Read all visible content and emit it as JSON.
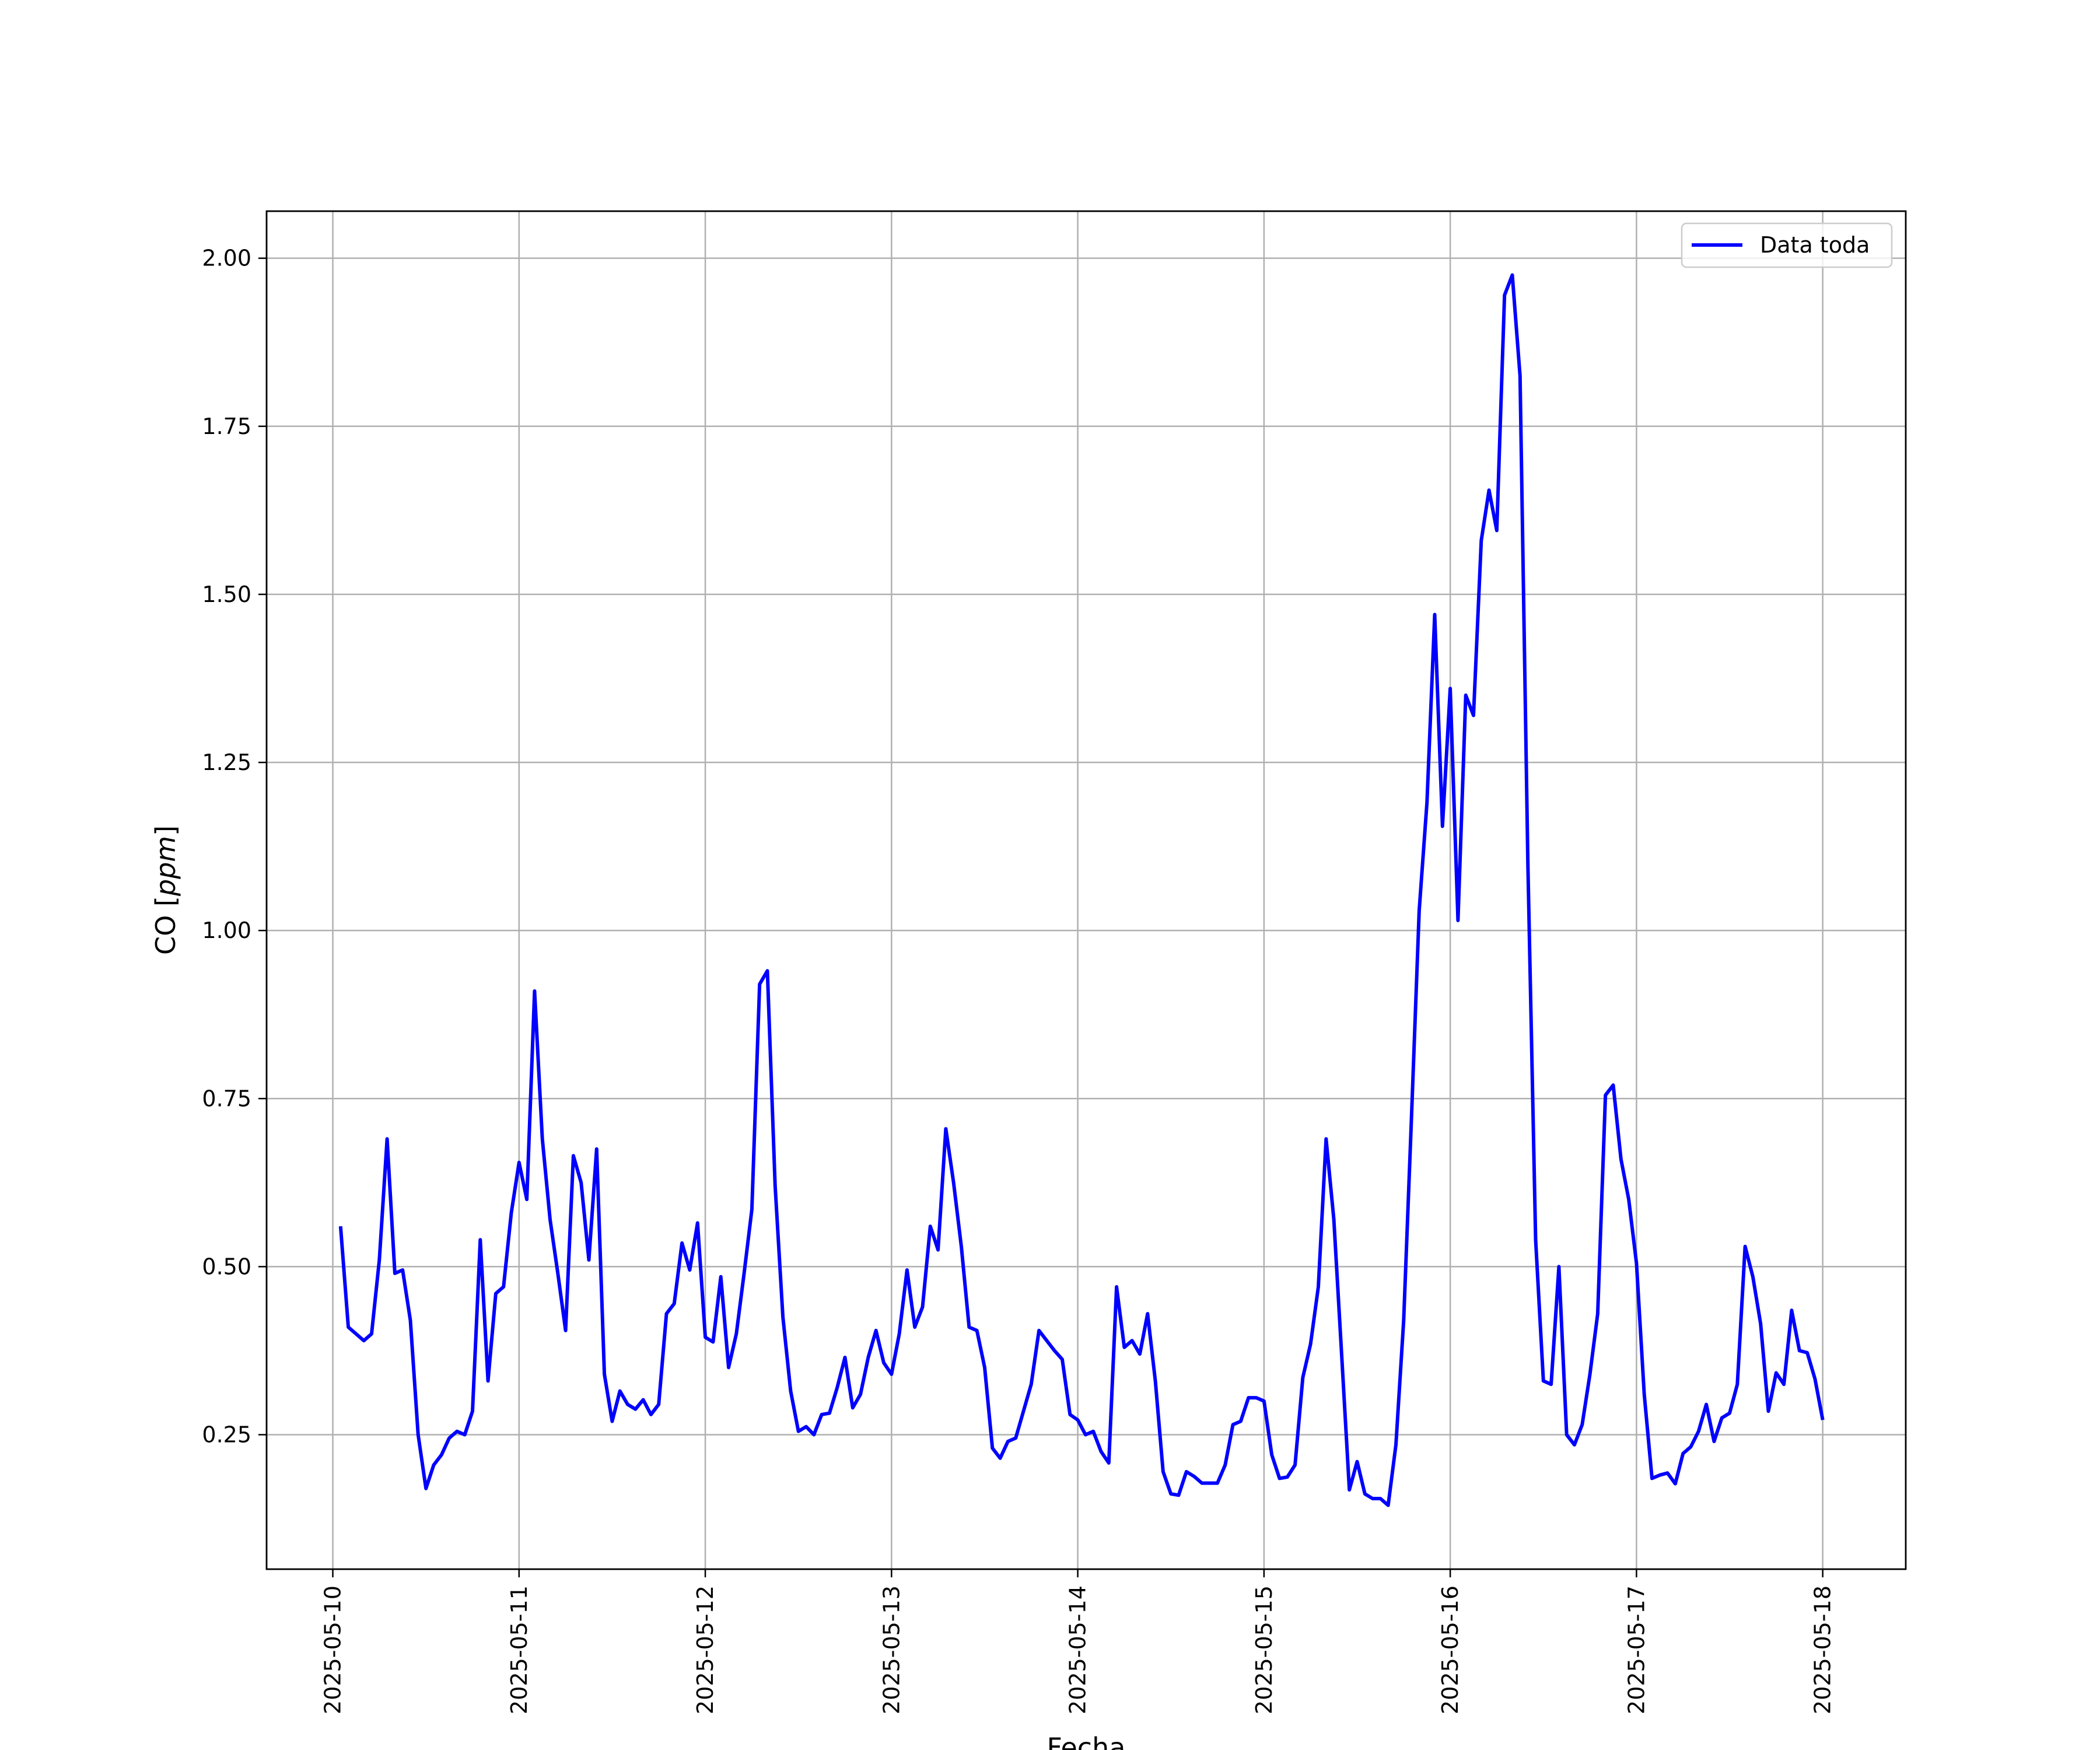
{
  "chart_data": {
    "type": "line",
    "xlabel": "Fecha",
    "ylabel_prefix": "CO [",
    "ylabel_unit": "ppm",
    "ylabel_suffix": "]",
    "x_ticks": [
      "2025-05-10",
      "2025-05-11",
      "2025-05-12",
      "2025-05-13",
      "2025-05-14",
      "2025-05-15",
      "2025-05-16",
      "2025-05-17",
      "2025-05-18"
    ],
    "y_ticks": [
      "0.25",
      "0.50",
      "0.75",
      "1.00",
      "1.25",
      "1.50",
      "1.75",
      "2.00"
    ],
    "xlim": [
      "2025-05-09T15:28",
      "2025-05-18T10:42"
    ],
    "ylim": [
      0.05,
      2.07
    ],
    "grid": true,
    "legend_position": "upper right",
    "series": [
      {
        "name": "Data toda",
        "color": "#0000ff",
        "x": [
          "2025-05-10T01:00",
          "2025-05-10T02:00",
          "2025-05-10T03:00",
          "2025-05-10T04:00",
          "2025-05-10T05:00",
          "2025-05-10T06:00",
          "2025-05-10T07:00",
          "2025-05-10T08:00",
          "2025-05-10T09:00",
          "2025-05-10T10:00",
          "2025-05-10T11:00",
          "2025-05-10T12:00",
          "2025-05-10T13:00",
          "2025-05-10T14:00",
          "2025-05-10T15:00",
          "2025-05-10T16:00",
          "2025-05-10T17:00",
          "2025-05-10T18:00",
          "2025-05-10T19:00",
          "2025-05-10T20:00",
          "2025-05-10T21:00",
          "2025-05-10T22:00",
          "2025-05-10T23:00",
          "2025-05-11T00:00",
          "2025-05-11T01:00",
          "2025-05-11T02:00",
          "2025-05-11T03:00",
          "2025-05-11T04:00",
          "2025-05-11T05:00",
          "2025-05-11T06:00",
          "2025-05-11T07:00",
          "2025-05-11T08:00",
          "2025-05-11T09:00",
          "2025-05-11T10:00",
          "2025-05-11T11:00",
          "2025-05-11T12:00",
          "2025-05-11T13:00",
          "2025-05-11T14:00",
          "2025-05-11T15:00",
          "2025-05-11T16:00",
          "2025-05-11T17:00",
          "2025-05-11T18:00",
          "2025-05-11T19:00",
          "2025-05-11T20:00",
          "2025-05-11T21:00",
          "2025-05-11T22:00",
          "2025-05-11T23:00",
          "2025-05-12T00:00",
          "2025-05-12T01:00",
          "2025-05-12T02:00",
          "2025-05-12T03:00",
          "2025-05-12T04:00",
          "2025-05-12T05:00",
          "2025-05-12T06:00",
          "2025-05-12T07:00",
          "2025-05-12T08:00",
          "2025-05-12T09:00",
          "2025-05-12T10:00",
          "2025-05-12T11:00",
          "2025-05-12T12:00",
          "2025-05-12T13:00",
          "2025-05-12T14:00",
          "2025-05-12T15:00",
          "2025-05-12T16:00",
          "2025-05-12T17:00",
          "2025-05-12T18:00",
          "2025-05-12T19:00",
          "2025-05-12T20:00",
          "2025-05-12T21:00",
          "2025-05-12T22:00",
          "2025-05-12T23:00",
          "2025-05-13T00:00",
          "2025-05-13T01:00",
          "2025-05-13T02:00",
          "2025-05-13T03:00",
          "2025-05-13T04:00",
          "2025-05-13T05:00",
          "2025-05-13T06:00",
          "2025-05-13T07:00",
          "2025-05-13T08:00",
          "2025-05-13T09:00",
          "2025-05-13T10:00",
          "2025-05-13T11:00",
          "2025-05-13T12:00",
          "2025-05-13T13:00",
          "2025-05-13T14:00",
          "2025-05-13T15:00",
          "2025-05-13T16:00",
          "2025-05-13T17:00",
          "2025-05-13T18:00",
          "2025-05-13T19:00",
          "2025-05-13T20:00",
          "2025-05-13T21:00",
          "2025-05-13T22:00",
          "2025-05-13T23:00",
          "2025-05-14T00:00",
          "2025-05-14T01:00",
          "2025-05-14T02:00",
          "2025-05-14T03:00",
          "2025-05-14T04:00",
          "2025-05-14T05:00",
          "2025-05-14T06:00",
          "2025-05-14T07:00",
          "2025-05-14T08:00",
          "2025-05-14T09:00",
          "2025-05-14T10:00",
          "2025-05-14T11:00",
          "2025-05-14T12:00",
          "2025-05-14T13:00",
          "2025-05-14T14:00",
          "2025-05-14T15:00",
          "2025-05-14T16:00",
          "2025-05-14T17:00",
          "2025-05-14T18:00",
          "2025-05-14T19:00",
          "2025-05-14T20:00",
          "2025-05-14T21:00",
          "2025-05-14T22:00",
          "2025-05-14T23:00",
          "2025-05-15T00:00",
          "2025-05-15T01:00",
          "2025-05-15T02:00",
          "2025-05-15T03:00",
          "2025-05-15T04:00",
          "2025-05-15T05:00",
          "2025-05-15T06:00",
          "2025-05-15T07:00",
          "2025-05-15T08:00",
          "2025-05-15T09:00",
          "2025-05-15T10:00",
          "2025-05-15T11:00",
          "2025-05-15T12:00",
          "2025-05-15T13:00",
          "2025-05-15T14:00",
          "2025-05-15T15:00",
          "2025-05-15T16:00",
          "2025-05-15T17:00",
          "2025-05-15T18:00",
          "2025-05-15T19:00",
          "2025-05-15T20:00",
          "2025-05-15T21:00",
          "2025-05-15T22:00",
          "2025-05-15T23:00",
          "2025-05-16T00:00",
          "2025-05-16T01:00",
          "2025-05-16T02:00",
          "2025-05-16T03:00",
          "2025-05-16T04:00",
          "2025-05-16T05:00",
          "2025-05-16T06:00",
          "2025-05-16T07:00",
          "2025-05-16T08:00",
          "2025-05-16T09:00",
          "2025-05-16T10:00",
          "2025-05-16T11:00",
          "2025-05-16T12:00",
          "2025-05-16T13:00",
          "2025-05-16T14:00",
          "2025-05-16T15:00",
          "2025-05-16T16:00",
          "2025-05-16T17:00",
          "2025-05-16T18:00",
          "2025-05-16T19:00",
          "2025-05-16T20:00",
          "2025-05-16T21:00",
          "2025-05-16T22:00",
          "2025-05-16T23:00",
          "2025-05-17T00:00",
          "2025-05-17T01:00",
          "2025-05-17T02:00",
          "2025-05-17T03:00",
          "2025-05-17T04:00",
          "2025-05-17T05:00",
          "2025-05-17T06:00",
          "2025-05-17T07:00",
          "2025-05-17T08:00",
          "2025-05-17T09:00",
          "2025-05-17T10:00",
          "2025-05-17T11:00",
          "2025-05-17T12:00",
          "2025-05-17T13:00",
          "2025-05-17T14:00",
          "2025-05-17T15:00",
          "2025-05-17T16:00",
          "2025-05-17T17:00",
          "2025-05-17T18:00",
          "2025-05-17T19:00",
          "2025-05-17T20:00",
          "2025-05-17T21:00",
          "2025-05-17T22:00",
          "2025-05-17T23:00",
          "2025-05-18T00:00"
        ],
        "y": [
          0.56,
          0.41,
          0.4,
          0.39,
          0.4,
          0.51,
          0.69,
          0.49,
          0.495,
          0.42,
          0.25,
          0.17,
          0.205,
          0.22,
          0.245,
          0.255,
          0.25,
          0.285,
          0.54,
          0.33,
          0.46,
          0.47,
          0.58,
          0.655,
          0.6,
          0.91,
          0.69,
          0.57,
          0.49,
          0.405,
          0.665,
          0.625,
          0.51,
          0.675,
          0.34,
          0.27,
          0.315,
          0.295,
          0.288,
          0.302,
          0.28,
          0.295,
          0.43,
          0.445,
          0.535,
          0.495,
          0.565,
          0.395,
          0.388,
          0.485,
          0.35,
          0.4,
          0.49,
          0.585,
          0.92,
          0.94,
          0.62,
          0.425,
          0.315,
          0.255,
          0.262,
          0.25,
          0.28,
          0.282,
          0.32,
          0.365,
          0.29,
          0.31,
          0.365,
          0.405,
          0.357,
          0.34,
          0.4,
          0.495,
          0.41,
          0.44,
          0.56,
          0.525,
          0.705,
          0.625,
          0.53,
          0.41,
          0.405,
          0.35,
          0.23,
          0.215,
          0.24,
          0.245,
          0.285,
          0.325,
          0.405,
          0.39,
          0.375,
          0.362,
          0.28,
          0.272,
          0.25,
          0.255,
          0.225,
          0.208,
          0.47,
          0.38,
          0.39,
          0.37,
          0.43,
          0.33,
          0.195,
          0.162,
          0.16,
          0.195,
          0.188,
          0.178,
          0.178,
          0.178,
          0.205,
          0.265,
          0.27,
          0.305,
          0.305,
          0.3,
          0.22,
          0.185,
          0.187,
          0.205,
          0.335,
          0.385,
          0.47,
          0.69,
          0.57,
          0.37,
          0.168,
          0.21,
          0.162,
          0.155,
          0.155,
          0.145,
          0.235,
          0.42,
          0.72,
          1.03,
          1.19,
          1.47,
          1.155,
          1.36,
          1.015,
          1.35,
          1.32,
          1.58,
          1.655,
          1.595,
          1.945,
          1.975,
          1.825,
          1.1,
          0.54,
          0.33,
          0.325,
          0.5,
          0.25,
          0.235,
          0.265,
          0.34,
          0.43,
          0.755,
          0.77,
          0.66,
          0.6,
          0.505,
          0.31,
          0.185,
          0.19,
          0.193,
          0.177,
          0.222,
          0.232,
          0.255,
          0.295,
          0.24,
          0.275,
          0.282,
          0.325,
          0.53,
          0.485,
          0.415,
          0.285,
          0.342,
          0.325,
          0.435,
          0.375,
          0.372,
          0.333,
          0.272
        ]
      }
    ]
  }
}
